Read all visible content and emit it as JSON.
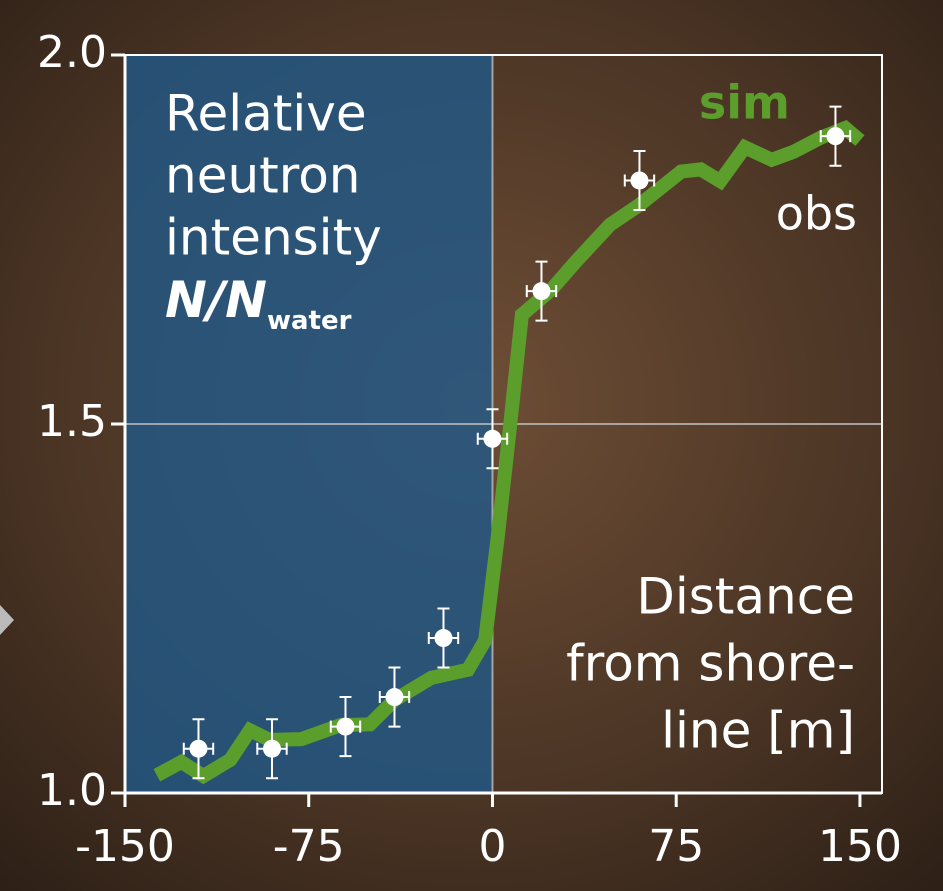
{
  "chart_data": {
    "type": "line",
    "y_label": {
      "lines": [
        "Relative",
        "neutron",
        "intensity"
      ],
      "symbol": "N/N",
      "subscript": "water"
    },
    "x_label": [
      "Distance",
      "from shore-",
      "line [m]"
    ],
    "water_span": [
      -150,
      0
    ],
    "series": [
      {
        "name": "sim",
        "color": "#5c9e2c",
        "x": [
          -137,
          -127,
          -118,
          -107,
          -99,
          -91,
          -78,
          -62,
          -50,
          -40,
          -25,
          -10,
          -3,
          2,
          7,
          12,
          24,
          34,
          48,
          60,
          77,
          85,
          93,
          103,
          114,
          123,
          134,
          144,
          150
        ],
        "values": [
          1.024,
          1.042,
          1.023,
          1.045,
          1.085,
          1.072,
          1.073,
          1.092,
          1.093,
          1.126,
          1.156,
          1.167,
          1.207,
          1.343,
          1.492,
          1.648,
          1.682,
          1.72,
          1.77,
          1.797,
          1.842,
          1.845,
          1.829,
          1.875,
          1.858,
          1.869,
          1.888,
          1.901,
          1.884
        ]
      },
      {
        "name": "obs",
        "color": "#ffffff",
        "x": [
          -120,
          -90,
          -60,
          -40,
          -20,
          0,
          20,
          60,
          140
        ],
        "values": [
          1.06,
          1.06,
          1.09,
          1.13,
          1.21,
          1.48,
          1.68,
          1.83,
          1.89
        ],
        "x_error": 6,
        "y_error": 0.04
      }
    ],
    "xlim": [
      -150,
      159
    ],
    "ylim": [
      1.0,
      2.0
    ],
    "xticks": [
      -150,
      -75,
      0,
      75,
      150
    ],
    "yticks": [
      {
        "value": 1.0,
        "label": "1.0"
      },
      {
        "value": 1.5,
        "label": "1.5"
      },
      {
        "value": 2.0,
        "label": "2.0"
      }
    ],
    "grid": true
  }
}
